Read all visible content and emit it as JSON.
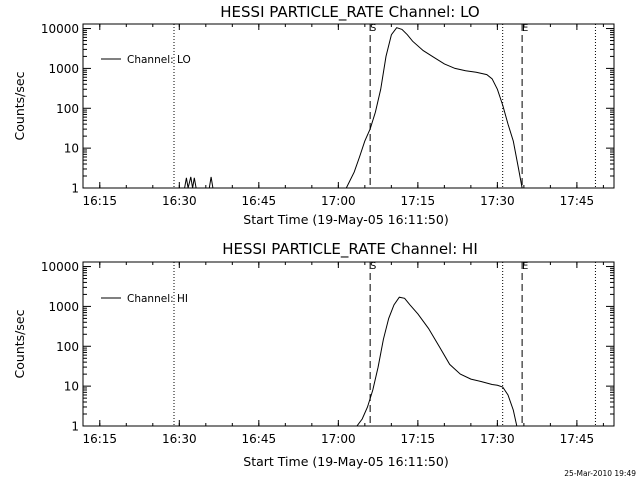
{
  "chart_data": [
    {
      "type": "line",
      "title": "HESSI PARTICLE_RATE Channel: LO",
      "xlabel": "Start Time (19-May-05 16:11:50)",
      "ylabel": "Counts/sec",
      "x_ticks": [
        "16:15",
        "16:30",
        "16:45",
        "17:00",
        "17:15",
        "17:30",
        "17:45"
      ],
      "y_ticks": [
        "1",
        "10",
        "100",
        "1000",
        "10000"
      ],
      "y_scale": "log",
      "xlim": [
        "16:11:50",
        "17:52:00"
      ],
      "ylim": [
        1,
        13000
      ],
      "legend": "top-left",
      "series": [
        {
          "name": "Channel: LO",
          "x": [
            "16:11:50",
            "16:31:00",
            "16:31:20",
            "16:31:40",
            "16:32:10",
            "16:32:30",
            "16:32:50",
            "16:33:10",
            "16:35:40",
            "16:36:00",
            "16:36:20",
            "16:36:40",
            "17:01:30",
            "17:03:00",
            "17:04:00",
            "17:05:00",
            "17:06:00",
            "17:07:00",
            "17:08:00",
            "17:09:00",
            "17:10:00",
            "17:11:00",
            "17:12:00",
            "17:13:00",
            "17:14:00",
            "17:16:00",
            "17:18:00",
            "17:20:00",
            "17:22:00",
            "17:24:00",
            "17:26:00",
            "17:28:00",
            "17:29:00",
            "17:30:00",
            "17:31:00",
            "17:32:00",
            "17:33:00",
            "17:34:00",
            "17:34:40",
            "17:52:00"
          ],
          "values": [
            1,
            1,
            1.8,
            1,
            1.9,
            1,
            1.8,
            1,
            1,
            1.9,
            1,
            1,
            1,
            2.5,
            6,
            15,
            30,
            80,
            300,
            2000,
            7000,
            10500,
            9500,
            7000,
            4800,
            2800,
            1900,
            1300,
            1000,
            870,
            800,
            700,
            550,
            300,
            120,
            40,
            15,
            3,
            1,
            1
          ]
        }
      ],
      "vlines": [
        {
          "label": "S",
          "x": "17:06:00",
          "style": "dashed"
        },
        {
          "label": "E",
          "x": "17:34:40",
          "style": "dashed"
        },
        {
          "x": "16:29:00",
          "style": "dotted"
        },
        {
          "x": "17:31:00",
          "style": "dotted"
        },
        {
          "x": "17:48:30",
          "style": "dotted"
        }
      ]
    },
    {
      "type": "line",
      "title": "HESSI PARTICLE_RATE Channel: HI",
      "xlabel": "Start Time (19-May-05 16:11:50)",
      "ylabel": "Counts/sec",
      "x_ticks": [
        "16:15",
        "16:30",
        "16:45",
        "17:00",
        "17:15",
        "17:30",
        "17:45"
      ],
      "y_ticks": [
        "1",
        "10",
        "100",
        "1000",
        "10000"
      ],
      "y_scale": "log",
      "xlim": [
        "16:11:50",
        "17:52:00"
      ],
      "ylim": [
        1,
        13000
      ],
      "legend": "top-left",
      "series": [
        {
          "name": "Channel: HI",
          "x": [
            "16:11:50",
            "17:03:30",
            "17:04:30",
            "17:05:30",
            "17:06:30",
            "17:07:30",
            "17:08:30",
            "17:09:30",
            "17:10:30",
            "17:11:30",
            "17:12:30",
            "17:13:30",
            "17:15:00",
            "17:17:00",
            "17:19:00",
            "17:21:00",
            "17:23:00",
            "17:25:00",
            "17:27:00",
            "17:29:00",
            "17:30:00",
            "17:31:00",
            "17:32:00",
            "17:33:00",
            "17:33:40",
            "17:52:00"
          ],
          "values": [
            1,
            1,
            1.5,
            3,
            8,
            30,
            150,
            500,
            1100,
            1700,
            1600,
            1100,
            650,
            280,
            100,
            35,
            20,
            15,
            13,
            11,
            10.5,
            9.5,
            6,
            2.5,
            1,
            1
          ]
        }
      ],
      "vlines": [
        {
          "label": "S",
          "x": "17:06:00",
          "style": "dashed"
        },
        {
          "label": "E",
          "x": "17:34:40",
          "style": "dashed"
        },
        {
          "x": "16:29:00",
          "style": "dotted"
        },
        {
          "x": "17:31:00",
          "style": "dotted"
        },
        {
          "x": "17:48:30",
          "style": "dotted"
        }
      ]
    }
  ],
  "timestamp": "25-Mar-2010 19:49"
}
